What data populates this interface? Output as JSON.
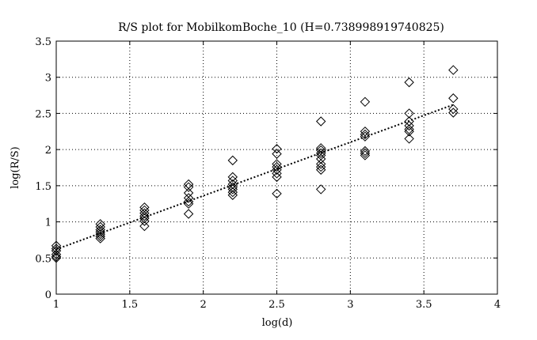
{
  "chart_data": {
    "type": "scatter",
    "title": "R/S plot for MobilkomBoche_10 (H=0.738998919740825)",
    "xlabel": "log(d)",
    "ylabel": "log(R/S)",
    "xlim": [
      1,
      4
    ],
    "ylim": [
      0,
      3.5
    ],
    "xticks": [
      1,
      1.5,
      2,
      2.5,
      3,
      3.5,
      4
    ],
    "yticks": [
      0,
      0.5,
      1,
      1.5,
      2,
      2.5,
      3,
      3.5
    ],
    "xtick_labels": [
      "1",
      "1.5",
      "2",
      "2.5",
      "3",
      "3.5",
      "4"
    ],
    "ytick_labels": [
      "0",
      "0.5",
      "1",
      "1.5",
      "2",
      "2.5",
      "3",
      "3.5"
    ],
    "grid": true,
    "marker": "diamond",
    "points": [
      {
        "x": 1.0,
        "y": 0.67
      },
      {
        "x": 1.0,
        "y": 0.63
      },
      {
        "x": 1.0,
        "y": 0.6
      },
      {
        "x": 1.0,
        "y": 0.55
      },
      {
        "x": 1.0,
        "y": 0.52
      },
      {
        "x": 1.0,
        "y": 0.5
      },
      {
        "x": 1.3,
        "y": 0.97
      },
      {
        "x": 1.3,
        "y": 0.93
      },
      {
        "x": 1.3,
        "y": 0.89
      },
      {
        "x": 1.3,
        "y": 0.86
      },
      {
        "x": 1.3,
        "y": 0.83
      },
      {
        "x": 1.3,
        "y": 0.8
      },
      {
        "x": 1.3,
        "y": 0.77
      },
      {
        "x": 1.6,
        "y": 1.2
      },
      {
        "x": 1.6,
        "y": 1.16
      },
      {
        "x": 1.6,
        "y": 1.12
      },
      {
        "x": 1.6,
        "y": 1.08
      },
      {
        "x": 1.6,
        "y": 1.05
      },
      {
        "x": 1.6,
        "y": 1.01
      },
      {
        "x": 1.6,
        "y": 0.94
      },
      {
        "x": 1.9,
        "y": 1.52
      },
      {
        "x": 1.9,
        "y": 1.48
      },
      {
        "x": 1.9,
        "y": 1.4
      },
      {
        "x": 1.9,
        "y": 1.33
      },
      {
        "x": 1.9,
        "y": 1.28
      },
      {
        "x": 1.9,
        "y": 1.25
      },
      {
        "x": 1.9,
        "y": 1.11
      },
      {
        "x": 2.2,
        "y": 1.85
      },
      {
        "x": 2.2,
        "y": 1.62
      },
      {
        "x": 2.2,
        "y": 1.57
      },
      {
        "x": 2.2,
        "y": 1.52
      },
      {
        "x": 2.2,
        "y": 1.48
      },
      {
        "x": 2.2,
        "y": 1.45
      },
      {
        "x": 2.2,
        "y": 1.41
      },
      {
        "x": 2.2,
        "y": 1.37
      },
      {
        "x": 2.5,
        "y": 2.01
      },
      {
        "x": 2.5,
        "y": 1.94
      },
      {
        "x": 2.5,
        "y": 1.8
      },
      {
        "x": 2.5,
        "y": 1.76
      },
      {
        "x": 2.5,
        "y": 1.72
      },
      {
        "x": 2.5,
        "y": 1.67
      },
      {
        "x": 2.5,
        "y": 1.62
      },
      {
        "x": 2.5,
        "y": 1.39
      },
      {
        "x": 2.8,
        "y": 2.39
      },
      {
        "x": 2.8,
        "y": 2.02
      },
      {
        "x": 2.8,
        "y": 1.99
      },
      {
        "x": 2.8,
        "y": 1.95
      },
      {
        "x": 2.8,
        "y": 1.92
      },
      {
        "x": 2.8,
        "y": 1.87
      },
      {
        "x": 2.8,
        "y": 1.8
      },
      {
        "x": 2.8,
        "y": 1.76
      },
      {
        "x": 2.8,
        "y": 1.72
      },
      {
        "x": 2.8,
        "y": 1.45
      },
      {
        "x": 3.1,
        "y": 2.66
      },
      {
        "x": 3.1,
        "y": 2.25
      },
      {
        "x": 3.1,
        "y": 2.21
      },
      {
        "x": 3.1,
        "y": 2.18
      },
      {
        "x": 3.1,
        "y": 1.98
      },
      {
        "x": 3.1,
        "y": 1.95
      },
      {
        "x": 3.1,
        "y": 1.92
      },
      {
        "x": 3.4,
        "y": 2.93
      },
      {
        "x": 3.4,
        "y": 2.5
      },
      {
        "x": 3.4,
        "y": 2.39
      },
      {
        "x": 3.4,
        "y": 2.33
      },
      {
        "x": 3.4,
        "y": 2.28
      },
      {
        "x": 3.4,
        "y": 2.25
      },
      {
        "x": 3.4,
        "y": 2.15
      },
      {
        "x": 3.7,
        "y": 3.1
      },
      {
        "x": 3.7,
        "y": 2.71
      },
      {
        "x": 3.7,
        "y": 2.56
      },
      {
        "x": 3.7,
        "y": 2.51
      }
    ],
    "fit_line": {
      "style": "dotted",
      "x": [
        1.0,
        3.7
      ],
      "y": [
        0.62,
        2.62
      ]
    }
  }
}
